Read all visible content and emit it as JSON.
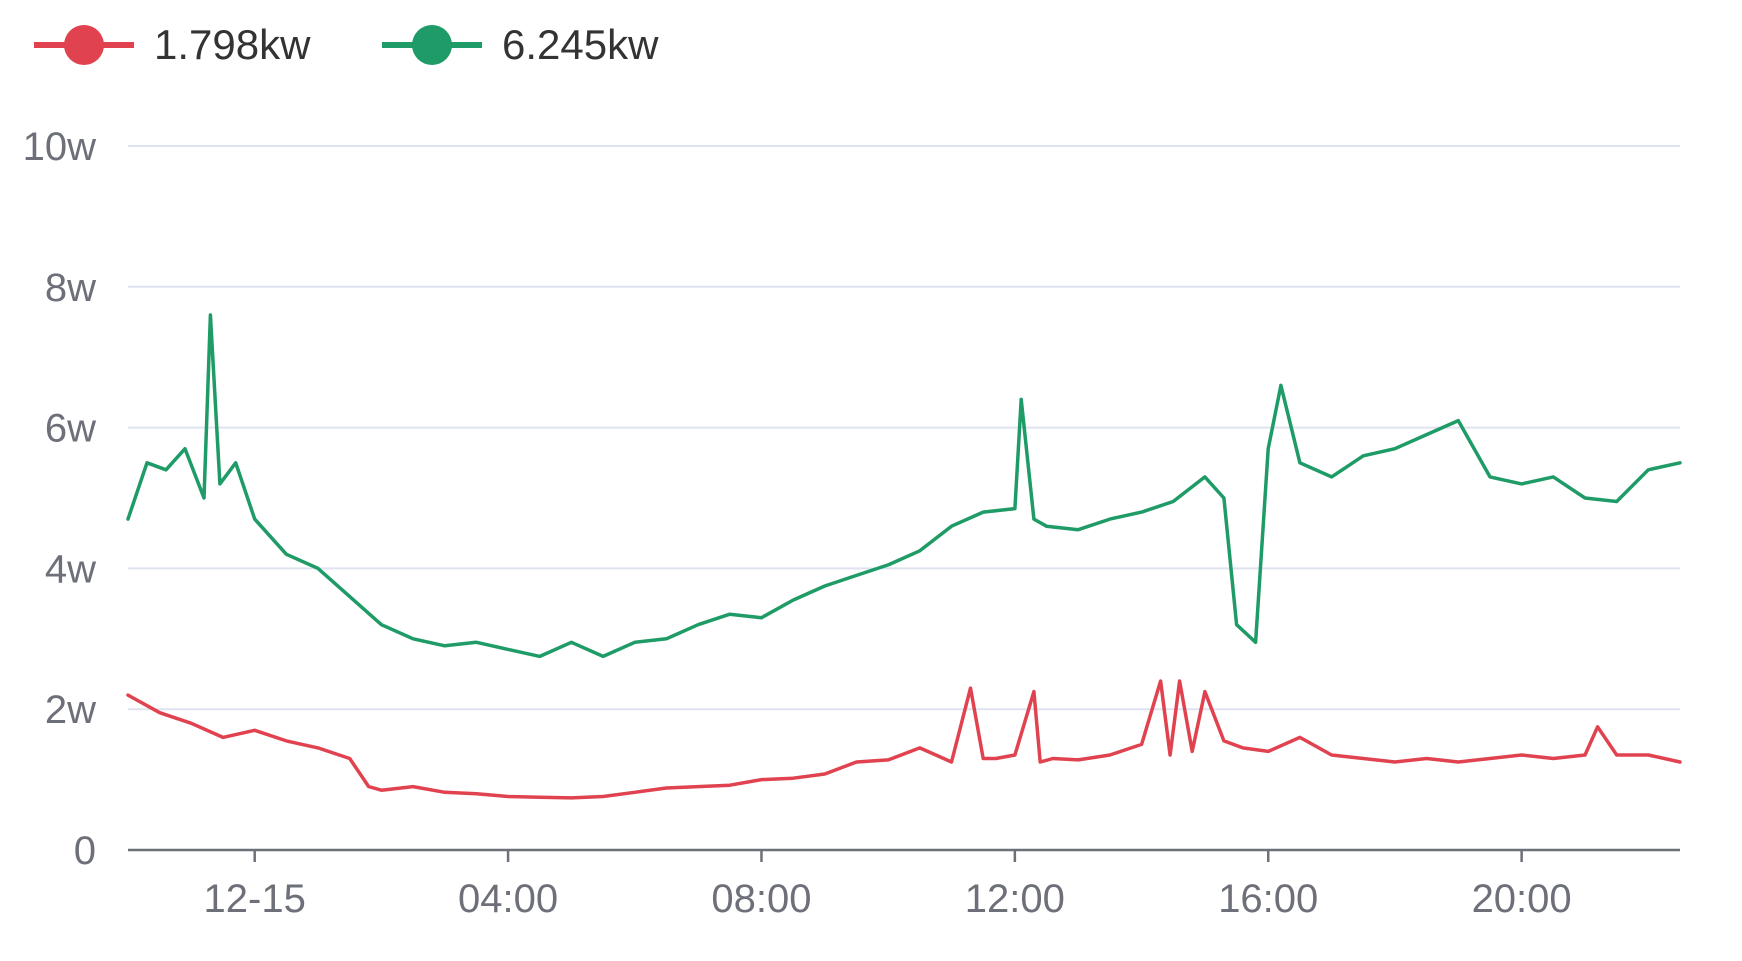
{
  "chart_data": {
    "type": "line",
    "title": "",
    "xlabel": "",
    "ylabel": "",
    "x_tick_labels": [
      "12-15",
      "04:00",
      "08:00",
      "12:00",
      "16:00",
      "20:00"
    ],
    "x_tick_hours": [
      0,
      4,
      8,
      12,
      16,
      20
    ],
    "x_range_hours": [
      -2,
      22.5
    ],
    "y_tick_labels": [
      "0",
      "2w",
      "4w",
      "6w",
      "8w",
      "10w"
    ],
    "y_tick_values": [
      0,
      20000,
      40000,
      60000,
      80000,
      100000
    ],
    "ylim": [
      0,
      100000
    ],
    "grid": true,
    "legend_position": "top-left",
    "series": [
      {
        "name": "1.798kw",
        "color": "#e0434f",
        "hours": [
          -2,
          -1.5,
          -1,
          -0.5,
          0,
          0.5,
          1,
          1.5,
          1.8,
          2,
          2.5,
          3,
          3.5,
          4,
          4.5,
          5,
          5.5,
          6,
          6.5,
          7,
          7.5,
          8,
          8.5,
          9,
          9.5,
          10,
          10.5,
          11,
          11.3,
          11.5,
          11.7,
          12,
          12.3,
          12.4,
          12.6,
          13,
          13.5,
          14,
          14.3,
          14.45,
          14.6,
          14.8,
          15,
          15.3,
          15.6,
          16,
          16.5,
          17,
          17.5,
          18,
          18.5,
          19,
          19.5,
          20,
          20.5,
          21,
          21.2,
          21.5,
          22,
          22.5
        ],
        "values": [
          22000,
          19500,
          18000,
          16000,
          17000,
          15500,
          14500,
          13000,
          9000,
          8500,
          9000,
          8200,
          8000,
          7600,
          7500,
          7400,
          7600,
          8200,
          8800,
          9000,
          9200,
          10000,
          10200,
          10800,
          12500,
          12800,
          14500,
          12500,
          23000,
          13000,
          13000,
          13500,
          22500,
          12500,
          13000,
          12800,
          13500,
          15000,
          24000,
          13500,
          24000,
          14000,
          22500,
          15500,
          14500,
          14000,
          16000,
          13500,
          13000,
          12500,
          13000,
          12500,
          13000,
          13500,
          13000,
          13500,
          17500,
          13500,
          13500,
          12500
        ]
      },
      {
        "name": "6.245kw",
        "color": "#1e9b66",
        "hours": [
          -2,
          -1.7,
          -1.4,
          -1.1,
          -0.8,
          -0.7,
          -0.55,
          -0.3,
          0,
          0.5,
          1,
          1.5,
          2,
          2.5,
          3,
          3.5,
          4,
          4.5,
          5,
          5.5,
          6,
          6.5,
          7,
          7.5,
          8,
          8.5,
          9,
          9.5,
          10,
          10.5,
          11,
          11.5,
          12,
          12.1,
          12.3,
          12.5,
          13,
          13.5,
          14,
          14.5,
          15,
          15.3,
          15.5,
          15.8,
          16,
          16.2,
          16.5,
          17,
          17.5,
          18,
          18.5,
          19,
          19.5,
          20,
          20.5,
          21,
          21.5,
          22,
          22.5
        ],
        "values": [
          47000,
          55000,
          54000,
          57000,
          50000,
          76000,
          52000,
          55000,
          47000,
          42000,
          40000,
          36000,
          32000,
          30000,
          29000,
          29500,
          28500,
          27500,
          29500,
          27500,
          29500,
          30000,
          32000,
          33500,
          33000,
          35500,
          37500,
          39000,
          40500,
          42500,
          46000,
          48000,
          48500,
          64000,
          47000,
          46000,
          45500,
          47000,
          48000,
          49500,
          53000,
          50000,
          32000,
          29500,
          57000,
          66000,
          55000,
          53000,
          56000,
          57000,
          59000,
          61000,
          53000,
          52000,
          53000,
          50000,
          49500,
          54000,
          55000
        ]
      }
    ]
  }
}
